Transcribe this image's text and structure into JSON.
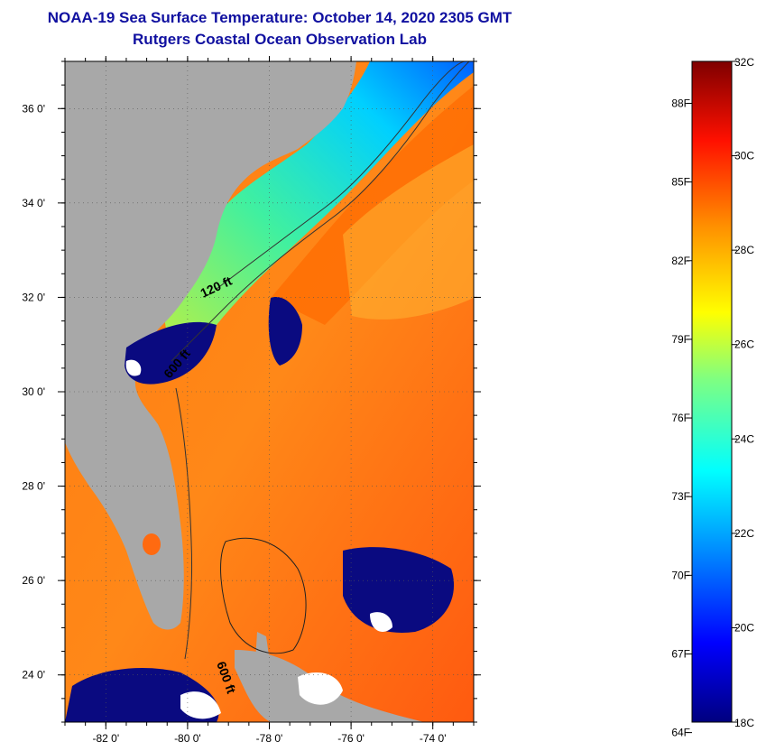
{
  "title_line1": "NOAA-19 Sea Surface Temperature:  October 14, 2020 2305 GMT",
  "title_line2": "Rutgers Coastal Ocean Observation Lab",
  "map": {
    "lon_range": [
      -83,
      -73
    ],
    "lat_range": [
      23,
      37
    ],
    "lon_ticks": [
      {
        "value": -82,
        "label": "-82 0'"
      },
      {
        "value": -80,
        "label": "-80 0'"
      },
      {
        "value": -78,
        "label": "-78 0'"
      },
      {
        "value": -76,
        "label": "-76 0'"
      },
      {
        "value": -74,
        "label": "-74 0'"
      }
    ],
    "lat_ticks": [
      {
        "value": 36,
        "label": "36 0'"
      },
      {
        "value": 34,
        "label": "34 0'"
      },
      {
        "value": 32,
        "label": "32 0'"
      },
      {
        "value": 30,
        "label": "30 0'"
      },
      {
        "value": 28,
        "label": "28 0'"
      },
      {
        "value": 26,
        "label": "26 0'"
      },
      {
        "value": 24,
        "label": "24 0'"
      }
    ],
    "contours": [
      {
        "label": "120 ft"
      },
      {
        "label": "600 ft"
      },
      {
        "label": "600 ft"
      }
    ],
    "colors": {
      "land": "#a8a8a8",
      "cloud": "#ffffff",
      "cold_mask": "#0a0a80",
      "warm": "#ff6a10",
      "shelf": "#20e0d0"
    }
  },
  "colorbar": {
    "range_c": [
      18,
      32
    ],
    "celsius": [
      {
        "value": 32,
        "label": "32C"
      },
      {
        "value": 30,
        "label": "30C"
      },
      {
        "value": 28,
        "label": "28C"
      },
      {
        "value": 26,
        "label": "26C"
      },
      {
        "value": 24,
        "label": "24C"
      },
      {
        "value": 22,
        "label": "22C"
      },
      {
        "value": 20,
        "label": "20C"
      },
      {
        "value": 18,
        "label": "18C"
      }
    ],
    "fahrenheit": [
      {
        "value": 88,
        "label": "88F"
      },
      {
        "value": 85,
        "label": "85F"
      },
      {
        "value": 82,
        "label": "82F"
      },
      {
        "value": 79,
        "label": "79F"
      },
      {
        "value": 76,
        "label": "76F"
      },
      {
        "value": 73,
        "label": "73F"
      },
      {
        "value": 70,
        "label": "70F"
      },
      {
        "value": 67,
        "label": "67F"
      },
      {
        "value": 64,
        "label": "64F"
      }
    ]
  }
}
